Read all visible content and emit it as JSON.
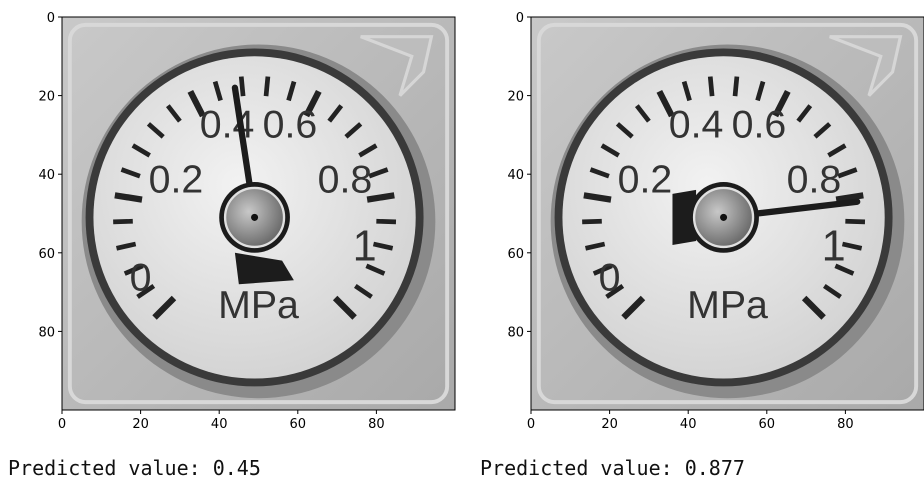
{
  "panels": [
    {
      "xticks": [
        0,
        20,
        40,
        60,
        80
      ],
      "yticks": [
        0,
        20,
        40,
        60,
        80
      ],
      "xlim": [
        0,
        100
      ],
      "ylim": [
        0,
        100
      ],
      "dial_labels": [
        "0",
        "0.2",
        "0.4",
        "0.6",
        "0.8",
        "1"
      ],
      "unit": "MPa",
      "caption": "Predicted value: 0.45"
    },
    {
      "xticks": [
        0,
        20,
        40,
        60,
        80
      ],
      "yticks": [
        0,
        20,
        40,
        60,
        80
      ],
      "xlim": [
        0,
        100
      ],
      "ylim": [
        0,
        100
      ],
      "dial_labels": [
        "0",
        "0.2",
        "0.4",
        "0.6",
        "0.8",
        "1"
      ],
      "unit": "MPa",
      "caption": "Predicted value: 0.877"
    }
  ]
}
